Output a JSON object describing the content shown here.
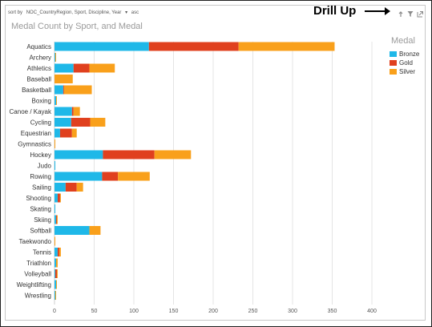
{
  "header": {
    "sort_prefix": "sort by",
    "sort_fields": "NOC_CountryRegion, Sport, Discipline, Year",
    "sort_chevron": "▾",
    "sort_order": "asc",
    "annotation": "Drill Up"
  },
  "icons": {
    "drill-up": "drill-up-icon",
    "filter": "filter-icon",
    "popout": "popout-icon"
  },
  "colors": {
    "Bronze": "#1fb8e8",
    "Gold": "#e0401e",
    "Silver": "#f9a01b",
    "grid": "#e4e4e4"
  },
  "chart_data": {
    "type": "bar",
    "orientation": "horizontal",
    "stacked": true,
    "title": "Medal Count by Sport, and Medal",
    "legend_title": "Medal",
    "legend_position": "right",
    "xlim": [
      0,
      400
    ],
    "x_ticks": [
      0,
      50,
      100,
      150,
      200,
      250,
      300,
      350,
      400
    ],
    "grid": true,
    "categories": [
      "Aquatics",
      "Archery",
      "Athletics",
      "Baseball",
      "Basketball",
      "Boxing",
      "Canoe / Kayak",
      "Cycling",
      "Equestrian",
      "Gymnastics",
      "Hockey",
      "Judo",
      "Rowing",
      "Sailing",
      "Shooting",
      "Skating",
      "Skiing",
      "Softball",
      "Taekwondo",
      "Tennis",
      "Triathlon",
      "Volleyball",
      "Weightlifting",
      "Wrestling"
    ],
    "series": [
      {
        "name": "Bronze",
        "values": [
          119,
          1,
          24,
          0,
          11,
          2,
          22,
          21,
          7,
          0,
          61,
          1,
          60,
          14,
          4,
          1,
          2,
          44,
          0,
          4,
          2,
          1,
          2,
          1
        ]
      },
      {
        "name": "Gold",
        "values": [
          113,
          0,
          20,
          0,
          1,
          0,
          2,
          24,
          15,
          0,
          65,
          0,
          20,
          14,
          3,
          0,
          1,
          0,
          0,
          2,
          0,
          2,
          0,
          0
        ]
      },
      {
        "name": "Silver",
        "values": [
          121,
          1,
          32,
          23,
          35,
          1,
          8,
          19,
          6,
          1,
          46,
          0,
          40,
          8,
          1,
          0,
          1,
          14,
          1,
          2,
          2,
          1,
          1,
          1
        ]
      }
    ]
  }
}
